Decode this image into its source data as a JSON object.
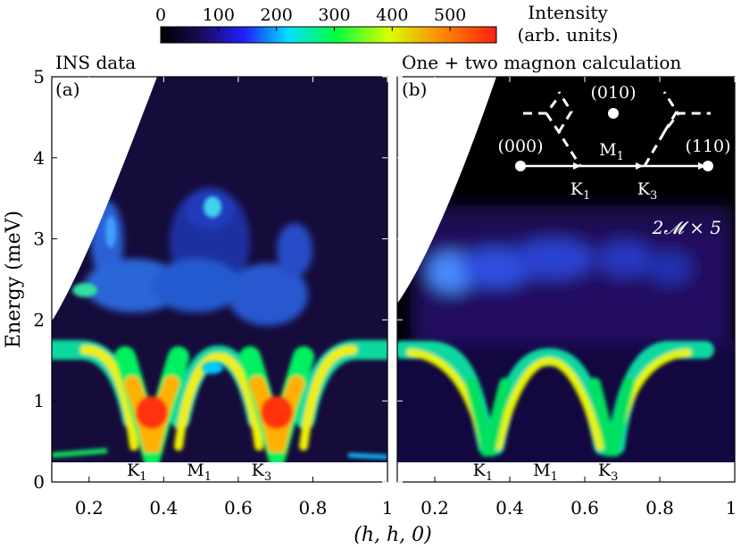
{
  "colorbar": {
    "ticks": [
      "0",
      "100",
      "200",
      "300",
      "400",
      "500"
    ],
    "tick_values": [
      0,
      100,
      200,
      300,
      400,
      500
    ],
    "max": 580,
    "label_line1": "Intensity",
    "label_line2": "(arb. units)",
    "colors": [
      "#000000",
      "#1a0a5a",
      "#2020ff",
      "#00e0ff",
      "#00ff40",
      "#d8ff00",
      "#ff8000",
      "#ff2010"
    ]
  },
  "panel_a": {
    "title": "INS data",
    "tag": "(a)"
  },
  "panel_b": {
    "title": "One + two magnon calculation",
    "tag": "(b)",
    "annotation": "2𝓜 × 5",
    "inset": {
      "point_000": "(000)",
      "point_010": "(010)",
      "point_110": "(110)",
      "label_M1": "M",
      "label_K1": "K",
      "label_K3": "K",
      "sub_1": "1",
      "sub_3": "3"
    }
  },
  "point_labels": {
    "K1": "K",
    "M1": "M",
    "K3": "K",
    "sub_1": "1",
    "sub_3": "3"
  },
  "chart_data": {
    "type": "heatmap",
    "xlabel": "(h, h, 0)",
    "ylabel": "Energy (meV)",
    "xlim": [
      0.1,
      1.0
    ],
    "ylim": [
      0,
      5
    ],
    "x_ticks": [
      "0.2",
      "0.4",
      "0.6",
      "0.8",
      "1"
    ],
    "x_tick_values": [
      0.2,
      0.4,
      0.6,
      0.8,
      1.0
    ],
    "y_ticks": [
      "0",
      "1",
      "2",
      "3",
      "4",
      "5"
    ],
    "y_tick_values": [
      0,
      1,
      2,
      3,
      4,
      5
    ],
    "high_symmetry_points": [
      {
        "name": "K1",
        "x": 0.333
      },
      {
        "name": "M1",
        "x": 0.5
      },
      {
        "name": "K3",
        "x": 0.667
      }
    ],
    "panels": [
      {
        "name": "INS data",
        "one_magnon_max_meV": 1.65,
        "one_magnon_min_meV": 0.3,
        "continuum_range_meV": [
          1.8,
          3.8
        ]
      },
      {
        "name": "One + two magnon calculation",
        "one_magnon_max_meV": 1.65,
        "one_magnon_min_meV": 0.3,
        "two_magnon_range_meV": [
          2.2,
          3.2
        ],
        "two_magnon_scale": 5
      }
    ]
  }
}
